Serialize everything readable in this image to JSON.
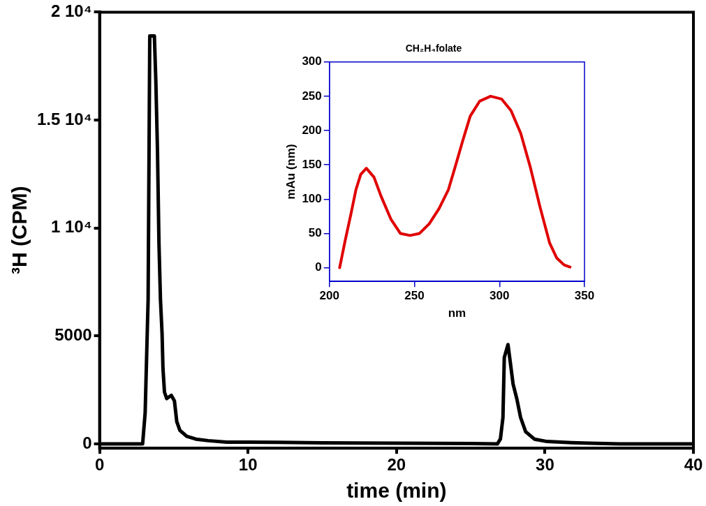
{
  "chart_data": [
    {
      "type": "line",
      "xlabel": "time (min)",
      "ylabel": "³H (CPM)",
      "xlim": [
        0,
        40
      ],
      "xticks": [
        0,
        10,
        20,
        30,
        40
      ],
      "ylim": [
        -200,
        20000
      ],
      "yticks": [
        0,
        5000,
        {
          "value": 10000,
          "label": "1 10⁴"
        },
        {
          "value": 15000,
          "label": "1.5 10⁴"
        },
        {
          "value": 20000,
          "label": "2 10⁴"
        }
      ],
      "series": [
        {
          "color": "#000000",
          "x": [
            0,
            2.9,
            3.07,
            3.27,
            3.38,
            3.69,
            3.79,
            3.9,
            4.0,
            4.1,
            4.21,
            4.27,
            4.37,
            4.52,
            4.83,
            5.04,
            5.2,
            5.41,
            5.87,
            6.49,
            7.32,
            8.57,
            10.02,
            12,
            15,
            20,
            25,
            26.8,
            27.0,
            27.17,
            27.26,
            27.51,
            27.68,
            27.85,
            28.1,
            28.36,
            28.7,
            29.29,
            30.14,
            31.8,
            33,
            35,
            40
          ],
          "values": [
            0,
            0,
            1440,
            6700,
            18900,
            18900,
            16800,
            13600,
            9300,
            6700,
            5100,
            3500,
            2400,
            2100,
            2250,
            2000,
            1030,
            630,
            350,
            220,
            150,
            80,
            80,
            70,
            50,
            30,
            20,
            0,
            230,
            1220,
            4000,
            4600,
            3700,
            2780,
            2100,
            1220,
            560,
            220,
            110,
            60,
            30,
            0,
            0
          ]
        }
      ]
    },
    {
      "type": "line",
      "title": "CH₂H₄folate",
      "xlabel": "nm",
      "ylabel": "mAu (nm)",
      "xlim": [
        200,
        350
      ],
      "xticks": [
        200,
        250,
        300,
        350
      ],
      "ylim": [
        -20,
        300
      ],
      "yticks": [
        0,
        50,
        100,
        150,
        200,
        250,
        300
      ],
      "series": [
        {
          "color": "#e00000",
          "x": [
            206,
            209.2,
            212.7,
            215.6,
            218.4,
            221.7,
            226.2,
            230.4,
            236.1,
            241.7,
            247.4,
            253,
            258.7,
            264.4,
            270,
            274.3,
            278.5,
            282.8,
            288.4,
            294.8,
            301.2,
            306.8,
            312.5,
            318.2,
            323.8,
            329.5,
            333.7,
            338,
            341.5
          ],
          "values": [
            0,
            39,
            79,
            114,
            136,
            145,
            132,
            104,
            71,
            50,
            47,
            50,
            64,
            86,
            114,
            150,
            186,
            221,
            243,
            250,
            246,
            229,
            196,
            146,
            89,
            36,
            14,
            4,
            1
          ]
        }
      ]
    }
  ]
}
